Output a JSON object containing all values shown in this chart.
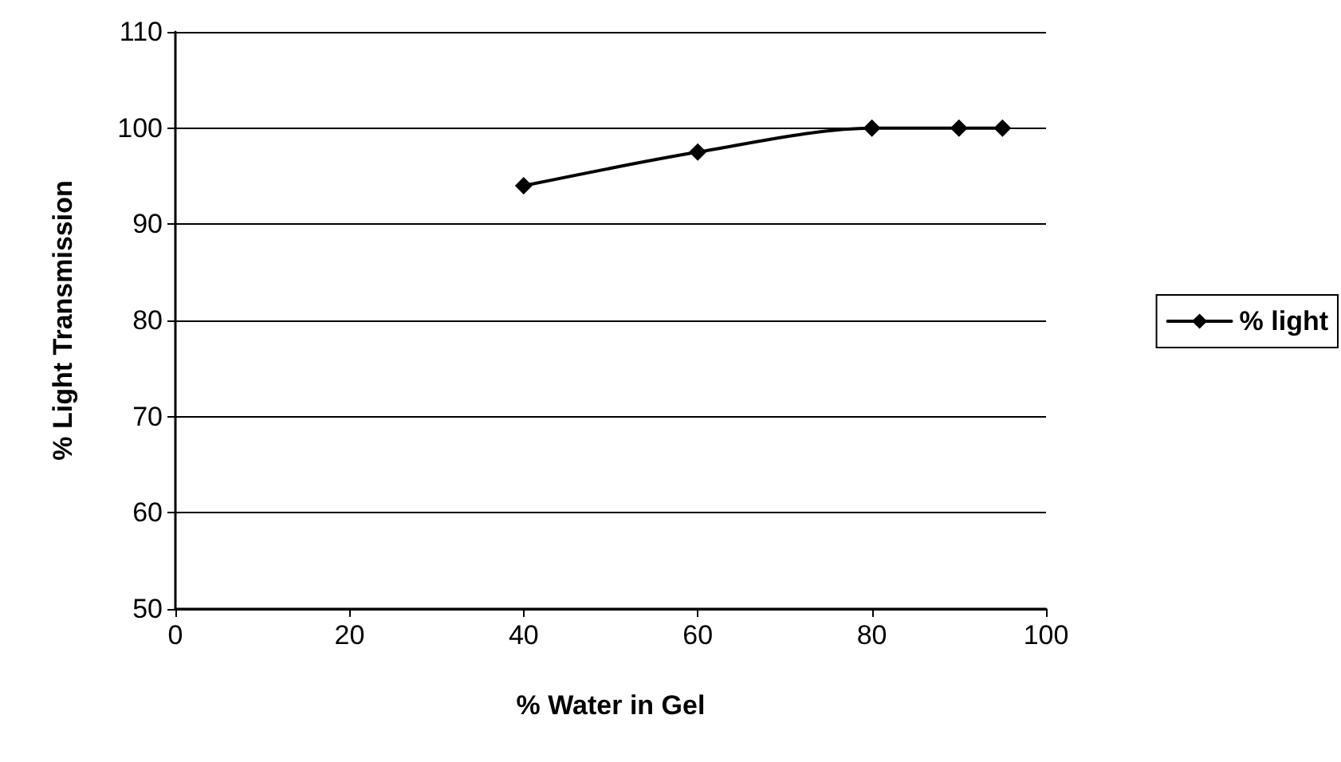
{
  "chart_data": {
    "type": "line",
    "xlabel": "% Water in Gel",
    "ylabel": "% Light Transmission",
    "x": [
      40,
      60,
      80,
      90,
      95
    ],
    "series": [
      {
        "name": "% light",
        "color": "#000000",
        "values": [
          94,
          97.5,
          100,
          100,
          100
        ]
      }
    ],
    "xlim": [
      0,
      100
    ],
    "xticks": [
      0,
      20,
      40,
      60,
      80,
      100
    ],
    "ylim": [
      50,
      110
    ],
    "yticks": [
      50,
      60,
      70,
      80,
      90,
      100,
      110
    ],
    "grid": "y",
    "legend": "right",
    "marker": "diamond",
    "line_style": "solid"
  }
}
